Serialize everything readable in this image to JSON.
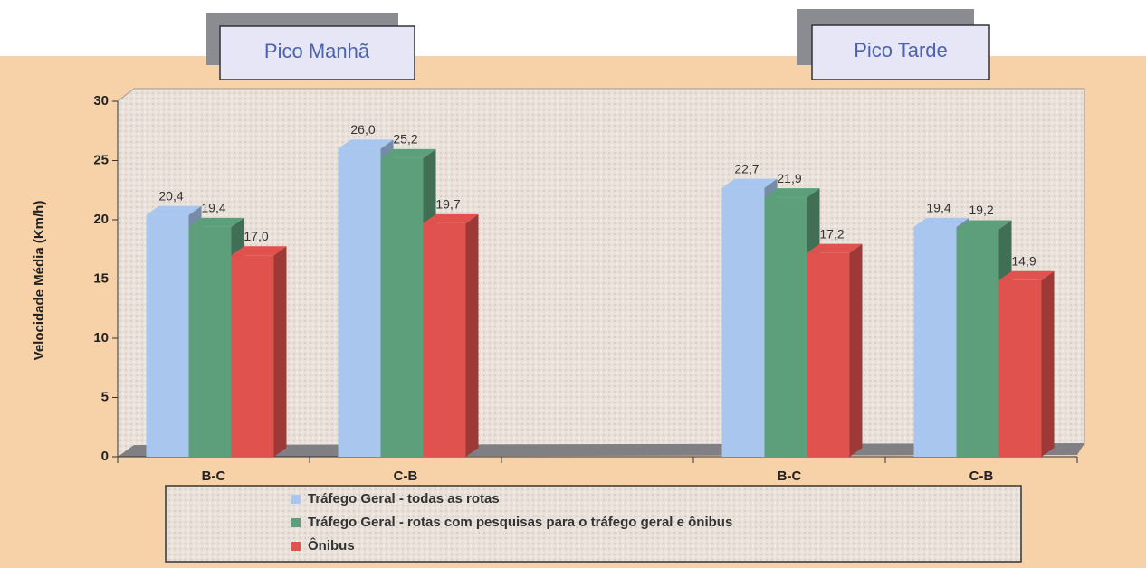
{
  "chart_data": {
    "type": "bar3d",
    "annotations": [
      "Pico Manhã",
      "Pico Tarde"
    ],
    "y_label": "Velocidade Média (Km/h)",
    "categories": [
      "B-C",
      "C-B",
      null,
      "B-C",
      "C-B"
    ],
    "series": [
      {
        "name": "Tráfego Geral - todas as rotas",
        "color": "#a8c6ee",
        "values": [
          20.4,
          26.0,
          null,
          22.7,
          19.4
        ],
        "value_labels": [
          "20,4",
          "26,0",
          null,
          "22,7",
          "19,4"
        ]
      },
      {
        "name": "Tráfego Geral - rotas com pesquisas para o tráfego geral e ônibus",
        "color": "#5c9f7a",
        "values": [
          19.4,
          25.2,
          null,
          21.9,
          19.2
        ],
        "value_labels": [
          "19,4",
          "25,2",
          null,
          "21,9",
          "19,2"
        ]
      },
      {
        "name": "Ônibus",
        "color": "#e0524e",
        "values": [
          17.0,
          19.7,
          null,
          17.2,
          14.9
        ],
        "value_labels": [
          "17,0",
          "19,7",
          null,
          "17,2",
          "14,9"
        ]
      }
    ],
    "ylim": [
      0,
      30
    ],
    "yticks": [
      0,
      5,
      10,
      15,
      20,
      25,
      30
    ]
  }
}
